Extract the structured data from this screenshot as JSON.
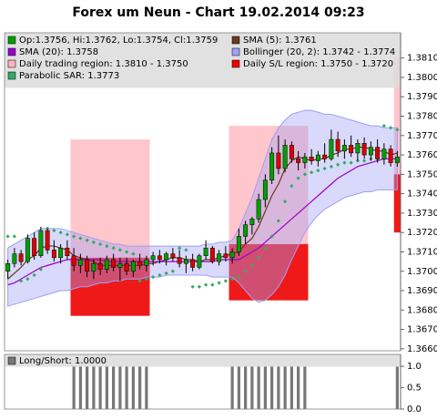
{
  "chart_data": [
    {
      "type": "candlestick",
      "title": "Forex um Neun - Chart 19.02.2014 09:23",
      "categories": [
        null,
        null,
        null,
        null,
        null,
        null,
        null,
        null,
        null,
        null,
        null,
        null,
        null,
        null,
        null,
        null,
        null,
        null,
        null,
        null,
        null,
        null,
        null,
        null,
        null,
        null,
        null,
        null,
        null,
        null,
        null,
        null,
        null,
        null,
        null,
        null,
        null,
        null,
        null,
        null,
        null,
        null,
        null,
        null,
        null,
        null,
        null,
        null,
        null,
        null,
        null,
        null,
        null,
        null,
        null,
        null,
        null,
        null,
        null,
        null
      ],
      "candles": {
        "name": "Op:1.3756, Hi:1.3762, Lo:1.3754, Cl:1.3759",
        "color": "#006600",
        "up_color": "#00a000",
        "down_color": "#dd0000",
        "open": [
          1.37,
          1.3704,
          1.3709,
          1.3705,
          1.3717,
          1.3708,
          1.3721,
          1.3711,
          1.3707,
          1.3712,
          1.3708,
          1.3703,
          1.3706,
          1.37,
          1.3704,
          1.3701,
          1.3706,
          1.3702,
          1.3704,
          1.37,
          1.3705,
          1.3703,
          1.3706,
          1.3708,
          1.3706,
          1.3709,
          1.3707,
          1.3704,
          1.3706,
          1.3702,
          1.3708,
          1.3712,
          1.3705,
          1.3709,
          1.3707,
          1.371,
          1.3718,
          1.3724,
          1.3727,
          1.3737,
          1.3747,
          1.3761,
          1.3753,
          1.3765,
          1.3758,
          1.3756,
          1.3759,
          1.3757,
          1.376,
          1.3758,
          1.3768,
          1.3762,
          1.3765,
          1.3761,
          1.3766,
          1.376,
          1.3764,
          1.3758,
          1.3763,
          1.3756
        ],
        "high": [
          1.3706,
          1.3712,
          1.3711,
          1.3719,
          1.372,
          1.3723,
          1.3722,
          1.3716,
          1.3714,
          1.3716,
          1.3712,
          1.3709,
          1.3708,
          1.3706,
          1.3707,
          1.3708,
          1.3709,
          1.3707,
          1.3707,
          1.3706,
          1.3709,
          1.3708,
          1.371,
          1.3711,
          1.371,
          1.3712,
          1.3711,
          1.3708,
          1.3709,
          1.3709,
          1.3716,
          1.3713,
          1.3711,
          1.3713,
          1.3712,
          1.3722,
          1.3726,
          1.3728,
          1.374,
          1.375,
          1.3764,
          1.377,
          1.3768,
          1.3767,
          1.3762,
          1.3761,
          1.3763,
          1.3762,
          1.3766,
          1.3773,
          1.3772,
          1.3768,
          1.377,
          1.3768,
          1.3769,
          1.3767,
          1.3768,
          1.3766,
          1.3765,
          1.3762
        ],
        "low": [
          1.3696,
          1.3702,
          1.3703,
          1.3704,
          1.3706,
          1.3707,
          1.3709,
          1.3705,
          1.3704,
          1.3706,
          1.37,
          1.3699,
          1.3697,
          1.3696,
          1.3698,
          1.3699,
          1.37,
          1.3695,
          1.3698,
          1.3697,
          1.3701,
          1.37,
          1.3703,
          1.3704,
          1.3703,
          1.3705,
          1.3702,
          1.3699,
          1.37,
          1.3701,
          1.3706,
          1.3704,
          1.3703,
          1.3705,
          1.3704,
          1.3708,
          1.3714,
          1.3719,
          1.3725,
          1.3733,
          1.3745,
          1.375,
          1.3751,
          1.3756,
          1.3752,
          1.3753,
          1.3755,
          1.3754,
          1.3756,
          1.3757,
          1.3759,
          1.3758,
          1.3759,
          1.3757,
          1.3758,
          1.3757,
          1.3756,
          1.3755,
          1.3754,
          1.3754
        ],
        "close": [
          1.3704,
          1.3709,
          1.3705,
          1.3717,
          1.3708,
          1.3721,
          1.3711,
          1.3707,
          1.3712,
          1.3708,
          1.3703,
          1.3706,
          1.37,
          1.3704,
          1.3701,
          1.3706,
          1.3702,
          1.3704,
          1.37,
          1.3705,
          1.3703,
          1.3706,
          1.3708,
          1.3706,
          1.3709,
          1.3707,
          1.3704,
          1.3706,
          1.3702,
          1.3708,
          1.3712,
          1.3705,
          1.3709,
          1.3707,
          1.371,
          1.3718,
          1.3724,
          1.3727,
          1.3737,
          1.3747,
          1.3761,
          1.3753,
          1.3765,
          1.3758,
          1.3756,
          1.3759,
          1.3757,
          1.376,
          1.3758,
          1.3768,
          1.3762,
          1.3765,
          1.3761,
          1.3766,
          1.376,
          1.3764,
          1.3758,
          1.3763,
          1.3756,
          1.3759
        ]
      },
      "bands": {
        "name": "Bollinger (20, 2): 1.3742 - 1.3774",
        "color": "#9f9ff5",
        "upper": [
          1.3712,
          1.3714,
          1.3716,
          1.3718,
          1.372,
          1.3722,
          1.3722,
          1.3722,
          1.3722,
          1.3721,
          1.372,
          1.3719,
          1.3718,
          1.3717,
          1.3716,
          1.3715,
          1.3714,
          1.3714,
          1.3713,
          1.3713,
          1.3713,
          1.3713,
          1.3713,
          1.3713,
          1.3713,
          1.3713,
          1.3713,
          1.3713,
          1.3713,
          1.3713,
          1.3714,
          1.3714,
          1.3715,
          1.3715,
          1.3716,
          1.3722,
          1.373,
          1.3738,
          1.3748,
          1.3758,
          1.3768,
          1.3774,
          1.3778,
          1.3781,
          1.3782,
          1.3783,
          1.3783,
          1.3782,
          1.3781,
          1.3781,
          1.378,
          1.3779,
          1.3778,
          1.3777,
          1.3776,
          1.3775,
          1.3775,
          1.3774,
          1.3774,
          1.3774
        ],
        "lower": [
          1.3682,
          1.3683,
          1.3684,
          1.3685,
          1.3686,
          1.3687,
          1.3688,
          1.3689,
          1.369,
          1.369,
          1.3691,
          1.3692,
          1.3692,
          1.3693,
          1.3694,
          1.3694,
          1.3695,
          1.3695,
          1.3696,
          1.3696,
          1.3696,
          1.3697,
          1.3697,
          1.3697,
          1.3698,
          1.3698,
          1.3698,
          1.3698,
          1.3698,
          1.3698,
          1.3698,
          1.3697,
          1.3697,
          1.3697,
          1.3697,
          1.3694,
          1.369,
          1.3686,
          1.3684,
          1.3685,
          1.3688,
          1.3692,
          1.3698,
          1.3706,
          1.3713,
          1.372,
          1.3725,
          1.3729,
          1.3732,
          1.3734,
          1.3736,
          1.3738,
          1.3739,
          1.374,
          1.3741,
          1.3741,
          1.3742,
          1.3742,
          1.3742,
          1.3742
        ]
      },
      "series": [
        {
          "name": "SMA (5): 1.3761",
          "color": "#6b3a1e",
          "style": "line",
          "values": [
            1.3696,
            1.3699,
            1.3702,
            1.3706,
            1.3708,
            1.3712,
            1.3713,
            1.3713,
            1.3712,
            1.3711,
            1.3708,
            1.3707,
            1.3706,
            1.3705,
            1.3703,
            1.3703,
            1.3703,
            1.3703,
            1.3703,
            1.3703,
            1.3703,
            1.3704,
            1.3704,
            1.3705,
            1.3706,
            1.3707,
            1.3707,
            1.3706,
            1.3706,
            1.3705,
            1.3706,
            1.3706,
            1.3707,
            1.3708,
            1.3709,
            1.371,
            1.3714,
            1.3717,
            1.3723,
            1.3731,
            1.3739,
            1.3745,
            1.3753,
            1.3757,
            1.3759,
            1.3758,
            1.3757,
            1.3758,
            1.3758,
            1.376,
            1.3761,
            1.3763,
            1.3763,
            1.3764,
            1.3764,
            1.3763,
            1.3762,
            1.3762,
            1.376,
            1.3761
          ]
        },
        {
          "name": "SMA (20): 1.3758",
          "color": "#9900cc",
          "style": "line",
          "values": [
            1.3693,
            1.3694,
            1.3696,
            1.3698,
            1.37,
            1.3702,
            1.3703,
            1.3704,
            1.3705,
            1.3706,
            1.3706,
            1.3706,
            1.3706,
            1.3706,
            1.3706,
            1.3705,
            1.3705,
            1.3705,
            1.3705,
            1.3705,
            1.3705,
            1.3705,
            1.3705,
            1.3705,
            1.3705,
            1.3705,
            1.3705,
            1.3705,
            1.3705,
            1.3705,
            1.3705,
            1.3705,
            1.3706,
            1.3706,
            1.3706,
            1.3706,
            1.3708,
            1.371,
            1.3712,
            1.3715,
            1.3718,
            1.3721,
            1.3724,
            1.3727,
            1.373,
            1.3733,
            1.3736,
            1.3739,
            1.3742,
            1.3745,
            1.3748,
            1.375,
            1.3752,
            1.3754,
            1.3755,
            1.3756,
            1.3757,
            1.3758,
            1.3758,
            1.3758
          ]
        },
        {
          "name": "Parabolic SAR: 1.3773",
          "color": "#33aa66",
          "style": "dots",
          "values": [
            1.3718,
            1.3718,
            1.3695,
            1.3696,
            1.3698,
            1.3701,
            1.3722,
            1.3721,
            1.372,
            1.3719,
            1.3718,
            1.3717,
            1.3716,
            1.3715,
            1.3714,
            1.3713,
            1.3712,
            1.3711,
            1.371,
            1.3709,
            1.3695,
            1.3696,
            1.3697,
            1.3698,
            1.3699,
            1.37,
            1.3712,
            1.3711,
            1.3692,
            1.3692,
            1.3693,
            1.3693,
            1.3694,
            1.3695,
            1.3696,
            1.3697,
            1.37,
            1.3703,
            1.3707,
            1.3712,
            1.3718,
            1.3726,
            1.3736,
            1.3744,
            1.3748,
            1.375,
            1.3751,
            1.3752,
            1.3753,
            1.3754,
            1.3755,
            1.3756,
            1.3756,
            1.3757,
            1.3757,
            1.3758,
            1.3758,
            1.3775,
            1.3774,
            1.3773
          ]
        }
      ],
      "regions": {
        "trading": {
          "name": "Daily trading region: 1.3810 - 1.3750",
          "color": "#ffb3bb"
        },
        "sl": {
          "name": "Daily S/L region: 1.3750 - 1.3720",
          "color": "#ee0000"
        },
        "spans": [
          {
            "from": 10,
            "to": 22,
            "trading": [
              1.3768,
              1.3707
            ],
            "sl": [
              1.3707,
              1.3677
            ]
          },
          {
            "from": 34,
            "to": 46,
            "trading": [
              1.3775,
              1.3714
            ],
            "sl": [
              1.3714,
              1.3685
            ]
          },
          {
            "from": 59,
            "to": 60,
            "trading": [
              1.381,
              1.375
            ],
            "sl": [
              1.375,
              1.372
            ]
          }
        ]
      },
      "ylim": [
        1.3659,
        1.3823
      ],
      "yticks": [
        {
          "value": 1.366,
          "label": "1.3660"
        },
        {
          "value": 1.367,
          "label": "1.3670"
        },
        {
          "value": 1.368,
          "label": "1.3680"
        },
        {
          "value": 1.369,
          "label": "1.3690"
        },
        {
          "value": 1.37,
          "label": "1.3700"
        },
        {
          "value": 1.371,
          "label": "1.3710"
        },
        {
          "value": 1.372,
          "label": "1.3720"
        },
        {
          "value": 1.373,
          "label": "1.3730"
        },
        {
          "value": 1.374,
          "label": "1.3740"
        },
        {
          "value": 1.375,
          "label": "1.3750"
        },
        {
          "value": 1.376,
          "label": "1.3760"
        },
        {
          "value": 1.377,
          "label": "1.3770"
        },
        {
          "value": 1.378,
          "label": "1.3780"
        },
        {
          "value": 1.379,
          "label": "1.3790"
        },
        {
          "value": 1.38,
          "label": "1.3800"
        },
        {
          "value": 1.381,
          "label": "1.3810"
        }
      ]
    },
    {
      "type": "bar",
      "name": "Long/Short: 1.0000",
      "color": "#777777",
      "values": [
        0,
        0,
        0,
        0,
        0,
        0,
        0,
        0,
        0,
        0,
        1,
        1,
        1,
        1,
        1,
        1,
        1,
        1,
        1,
        1,
        1,
        1,
        0,
        0,
        0,
        0,
        0,
        0,
        0,
        0,
        0,
        0,
        0,
        0,
        1,
        1,
        1,
        1,
        1,
        1,
        1,
        1,
        1,
        1,
        1,
        1,
        0,
        0,
        0,
        0,
        0,
        0,
        0,
        0,
        0,
        0,
        0,
        0,
        0,
        1
      ],
      "ylim": [
        0,
        1.28
      ],
      "yticks": [
        {
          "value": 0,
          "label": "0.0"
        },
        {
          "value": 0.5,
          "label": "0.5"
        },
        {
          "value": 1,
          "label": "1.0"
        }
      ]
    }
  ]
}
